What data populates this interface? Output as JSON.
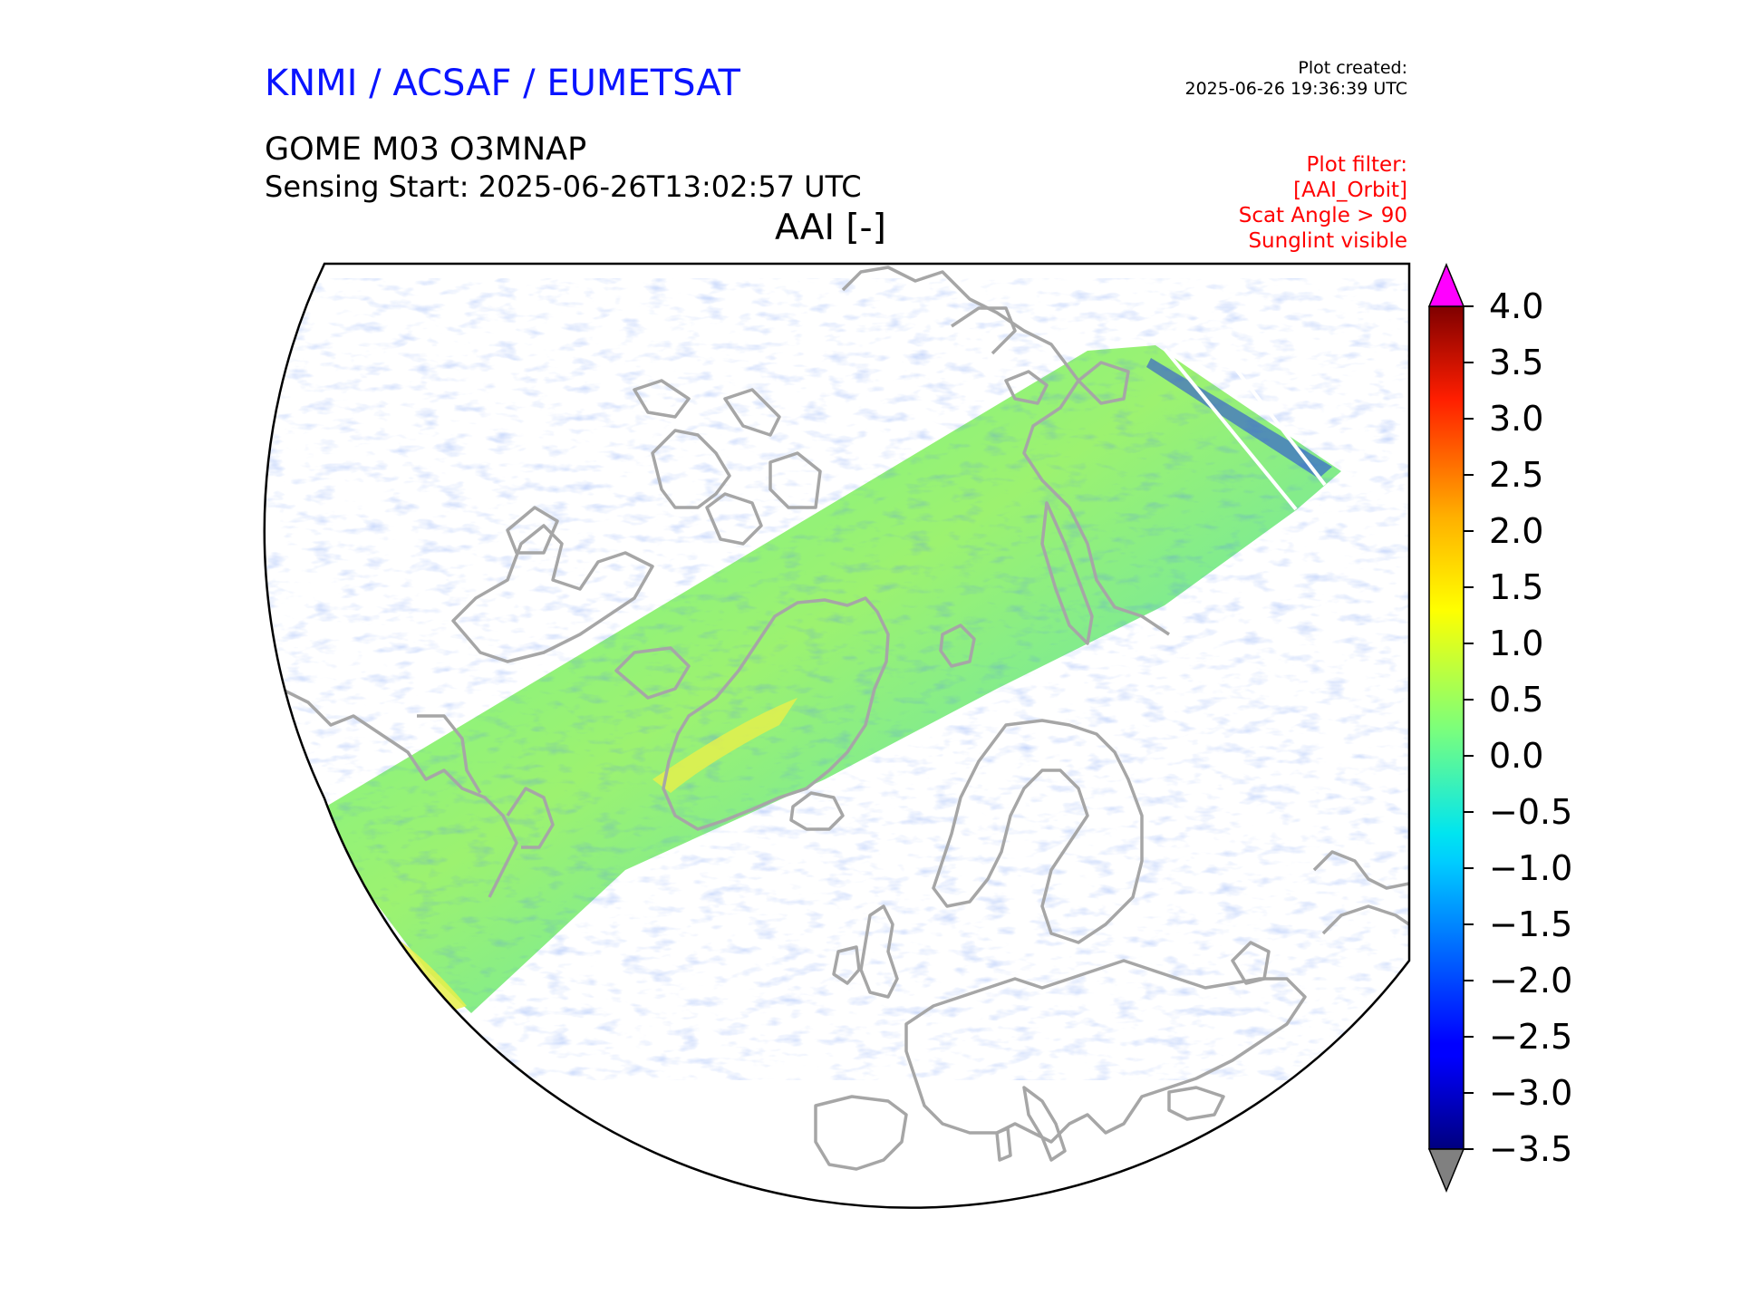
{
  "header": {
    "organisation": "KNMI / ACSAF / EUMETSAT",
    "organisation_color": "#0a14ff",
    "plot_created_label": "Plot created:",
    "plot_created_value": "2025-06-26 19:36:39 UTC",
    "product": "GOME M03 O3MNAP",
    "sensing_start": "Sensing Start: 2025-06-26T13:02:57 UTC",
    "variable": "AAI [-]"
  },
  "filters": {
    "color": "#ff0000",
    "lines": [
      "Plot filter:",
      "[AAI_Orbit]",
      "Scat Angle > 90",
      "Sunglint visible"
    ]
  },
  "map": {
    "projection": "north-polar-stereographic",
    "coastline_color": "#a0a0a0",
    "frame_color": "#000000",
    "swath_description_colors": [
      "#29e0e8",
      "#5ff0b0",
      "#a8f46a",
      "#e0f24a",
      "#1e7dff",
      "#1020d0"
    ]
  },
  "colorbar": {
    "colormap": "jet",
    "min": -3.5,
    "max": 4.0,
    "extend": "both",
    "under_color": "#808080",
    "over_color": "#ff00ff",
    "ticks": [
      "4.0",
      "3.5",
      "3.0",
      "2.5",
      "2.0",
      "1.5",
      "1.0",
      "0.5",
      "0.0",
      "−0.5",
      "−1.0",
      "−1.5",
      "−2.0",
      "−2.5",
      "−3.0",
      "−3.5"
    ]
  }
}
